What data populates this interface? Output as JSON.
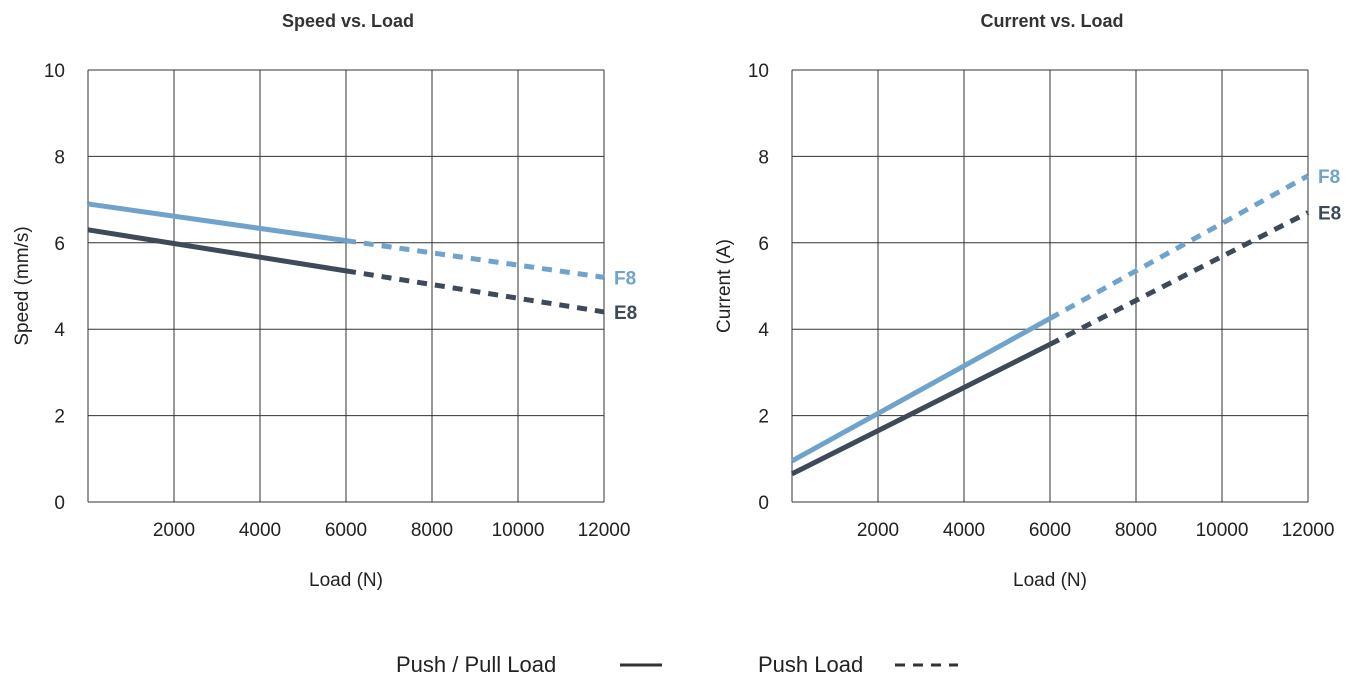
{
  "colors": {
    "F8": "#6fa3cc",
    "E8": "#3e4a5a",
    "grid": "#333333"
  },
  "legend": {
    "solid_label": "Push / Pull Load",
    "dashed_label": "Push Load"
  },
  "chart_data": [
    {
      "type": "line",
      "title": "Speed vs. Load",
      "xlabel": "Load (N)",
      "ylabel": "Speed (mm/s)",
      "xlim": [
        0,
        12000
      ],
      "ylim": [
        0,
        10
      ],
      "xticks": [
        2000,
        4000,
        6000,
        8000,
        10000,
        12000
      ],
      "yticks": [
        0,
        2,
        4,
        6,
        8,
        10
      ],
      "grid": true,
      "series": [
        {
          "name": "F8",
          "color": "#6fa3cc",
          "segments": [
            {
              "style": "solid",
              "x": [
                0,
                6000
              ],
              "y": [
                6.9,
                6.05
              ]
            },
            {
              "style": "dashed",
              "x": [
                6000,
                12000
              ],
              "y": [
                6.05,
                5.2
              ]
            }
          ]
        },
        {
          "name": "E8",
          "color": "#3e4a5a",
          "segments": [
            {
              "style": "solid",
              "x": [
                0,
                6000
              ],
              "y": [
                6.3,
                5.35
              ]
            },
            {
              "style": "dashed",
              "x": [
                6000,
                12000
              ],
              "y": [
                5.35,
                4.4
              ]
            }
          ]
        }
      ]
    },
    {
      "type": "line",
      "title": "Current  vs. Load",
      "xlabel": "Load (N)",
      "ylabel": "Current (A)",
      "xlim": [
        0,
        12000
      ],
      "ylim": [
        0,
        10
      ],
      "xticks": [
        2000,
        4000,
        6000,
        8000,
        10000,
        12000
      ],
      "yticks": [
        0,
        2,
        4,
        6,
        8,
        10
      ],
      "grid": true,
      "series": [
        {
          "name": "F8",
          "color": "#6fa3cc",
          "segments": [
            {
              "style": "solid",
              "x": [
                0,
                6000
              ],
              "y": [
                0.95,
                4.25
              ]
            },
            {
              "style": "dashed",
              "x": [
                6000,
                12000
              ],
              "y": [
                4.25,
                7.55
              ]
            }
          ]
        },
        {
          "name": "E8",
          "color": "#3e4a5a",
          "segments": [
            {
              "style": "solid",
              "x": [
                0,
                6000
              ],
              "y": [
                0.65,
                3.65
              ]
            },
            {
              "style": "dashed",
              "x": [
                6000,
                12000
              ],
              "y": [
                3.65,
                6.7
              ]
            }
          ]
        }
      ]
    }
  ]
}
